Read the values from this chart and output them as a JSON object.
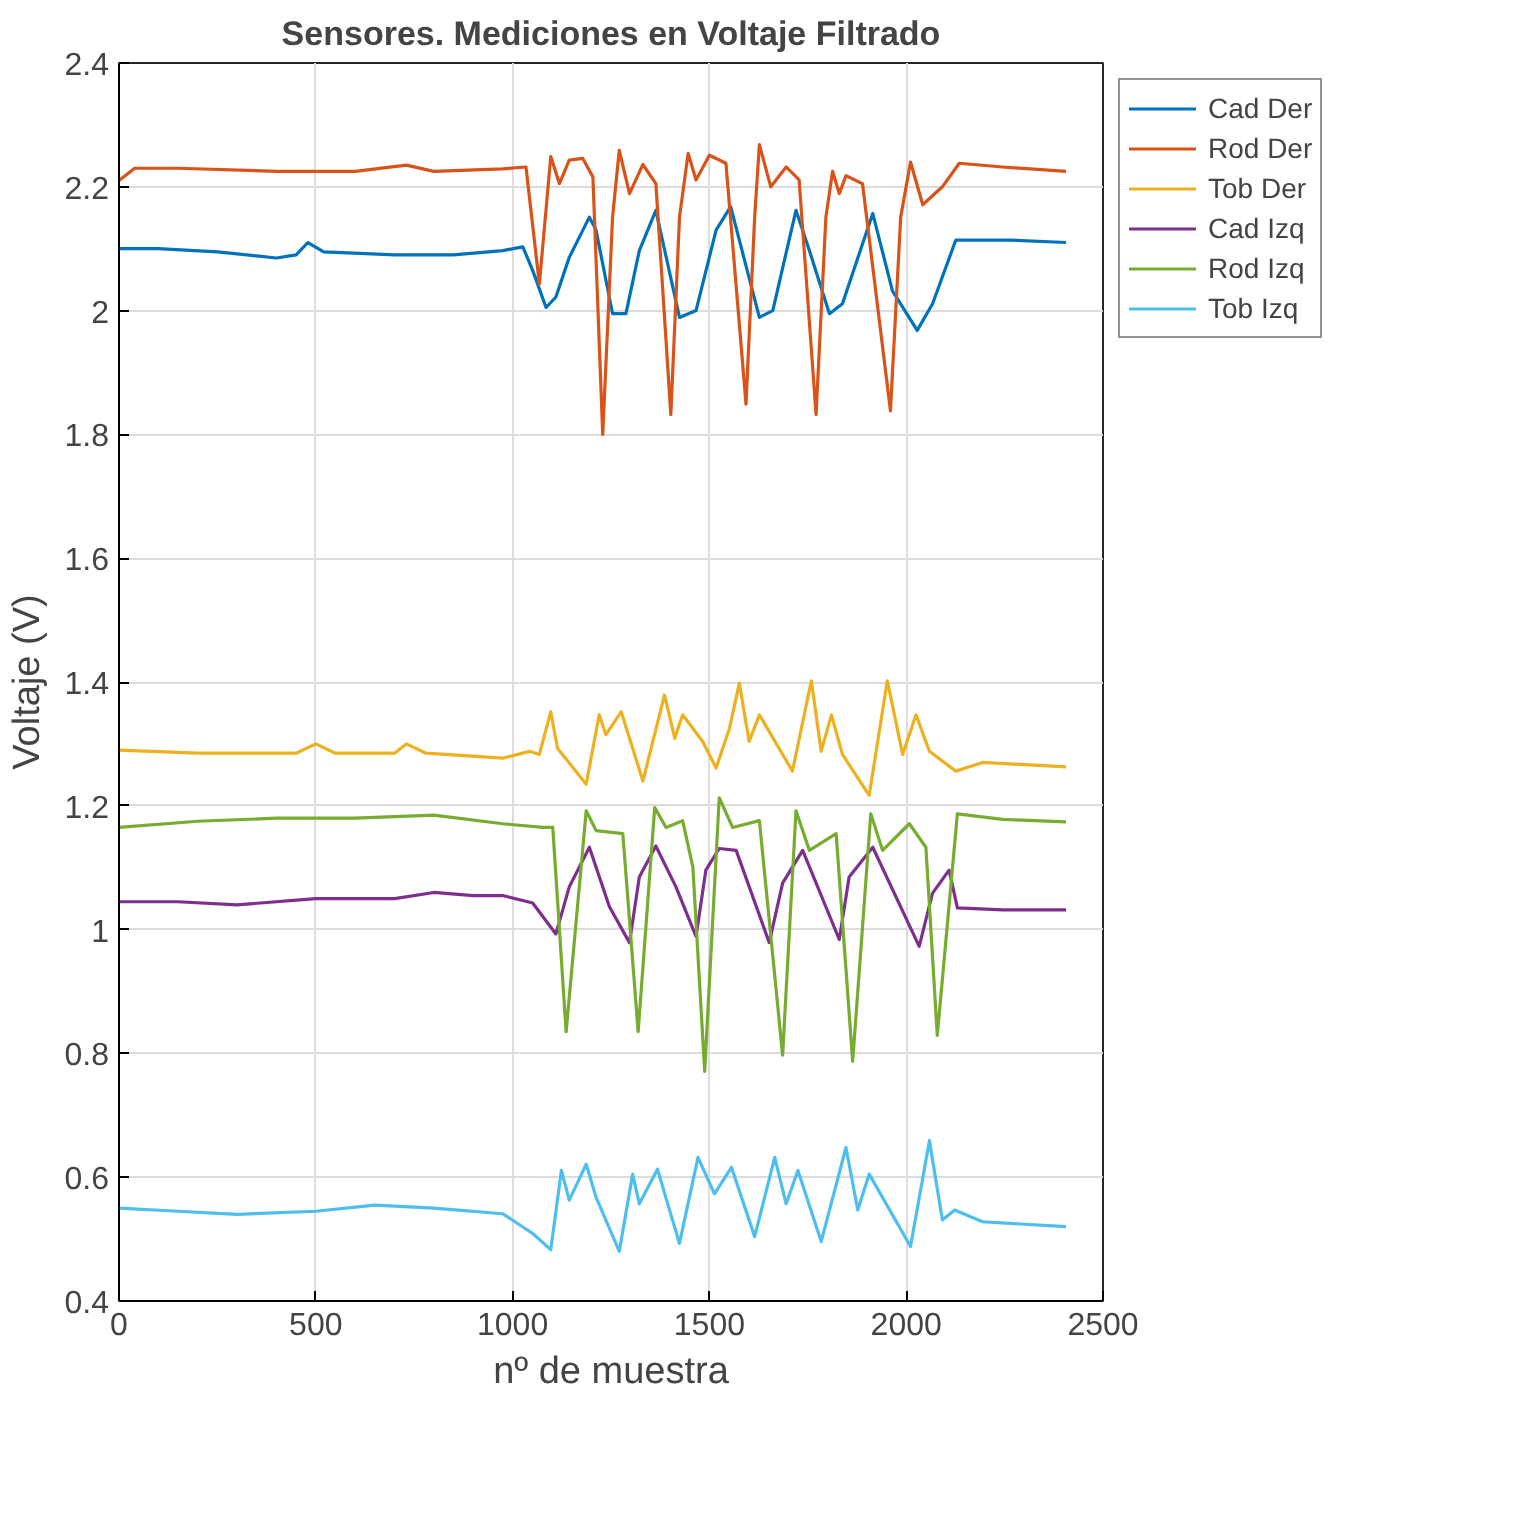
{
  "chart_data": {
    "type": "line",
    "title": "Sensores. Mediciones en Voltaje Filtrado",
    "xlabel": "nº de muestra",
    "ylabel": "Voltaje (V)",
    "xlim": [
      0,
      2500
    ],
    "xticks": [
      0,
      500,
      1000,
      1500,
      2000,
      2500
    ],
    "ylim": [
      0.4,
      2.4
    ],
    "yticks": [
      0.4,
      0.6,
      0.8,
      1,
      1.2,
      1.4,
      1.6,
      1.8,
      2,
      2.2,
      2.4
    ],
    "grid": true,
    "legend": "right",
    "line_style": "solid",
    "series": [
      {
        "name": "Cad Der",
        "color": "#0072bd",
        "x": [
          0,
          100,
          250,
          400,
          450,
          480,
          520,
          700,
          850,
          975,
          1026,
          1051,
          1085,
          1110,
          1144,
          1195,
          1212,
          1254,
          1288,
          1322,
          1364,
          1424,
          1466,
          1517,
          1554,
          1627,
          1661,
          1720,
          1754,
          1805,
          1838,
          1915,
          1965,
          2028,
          2067,
          2126,
          2262,
          2406
        ],
        "values": [
          2.1,
          2.1,
          2.095,
          2.085,
          2.09,
          2.11,
          2.095,
          2.09,
          2.09,
          2.097,
          2.103,
          2.065,
          2.005,
          2.022,
          2.086,
          2.151,
          2.13,
          1.995,
          1.995,
          2.097,
          2.162,
          1.989,
          2.0,
          2.13,
          2.168,
          1.989,
          2.0,
          2.162,
          2.097,
          1.995,
          2.011,
          2.157,
          2.032,
          1.968,
          2.011,
          2.114,
          2.114,
          2.11
        ]
      },
      {
        "name": "Rod Der",
        "color": "#d95319",
        "x": [
          0,
          40,
          150,
          400,
          600,
          730,
          800,
          975,
          1034,
          1068,
          1097,
          1119,
          1144,
          1178,
          1204,
          1229,
          1254,
          1271,
          1297,
          1331,
          1364,
          1402,
          1424,
          1446,
          1466,
          1500,
          1542,
          1593,
          1615,
          1627,
          1656,
          1695,
          1728,
          1771,
          1796,
          1813,
          1830,
          1847,
          1889,
          1960,
          1986,
          2011,
          2042,
          2092,
          2135,
          2245,
          2406
        ],
        "values": [
          2.21,
          2.23,
          2.23,
          2.225,
          2.225,
          2.235,
          2.225,
          2.229,
          2.232,
          2.043,
          2.249,
          2.205,
          2.243,
          2.246,
          2.216,
          1.8,
          2.151,
          2.259,
          2.189,
          2.236,
          2.205,
          1.832,
          2.151,
          2.254,
          2.211,
          2.251,
          2.238,
          1.849,
          2.151,
          2.268,
          2.2,
          2.232,
          2.211,
          1.832,
          2.151,
          2.225,
          2.189,
          2.218,
          2.205,
          1.838,
          2.151,
          2.24,
          2.171,
          2.2,
          2.238,
          2.232,
          2.225
        ]
      },
      {
        "name": "Tob Der",
        "color": "#edb120",
        "x": [
          0,
          200,
          450,
          500,
          550,
          700,
          730,
          780,
          975,
          1043,
          1068,
          1097,
          1114,
          1187,
          1220,
          1237,
          1276,
          1331,
          1386,
          1412,
          1432,
          1483,
          1517,
          1551,
          1576,
          1601,
          1627,
          1711,
          1759,
          1784,
          1810,
          1838,
          1906,
          1952,
          1991,
          2025,
          2059,
          2126,
          2194,
          2406
        ],
        "values": [
          1.29,
          1.285,
          1.285,
          1.3,
          1.285,
          1.285,
          1.3,
          1.285,
          1.277,
          1.288,
          1.283,
          1.352,
          1.293,
          1.235,
          1.347,
          1.315,
          1.352,
          1.24,
          1.379,
          1.309,
          1.347,
          1.304,
          1.261,
          1.325,
          1.398,
          1.304,
          1.347,
          1.256,
          1.402,
          1.288,
          1.347,
          1.283,
          1.217,
          1.402,
          1.283,
          1.347,
          1.288,
          1.256,
          1.27,
          1.263
        ]
      },
      {
        "name": "Cad Izq",
        "color": "#7e2f8e",
        "x": [
          0,
          150,
          300,
          500,
          700,
          800,
          900,
          975,
          1051,
          1110,
          1144,
          1195,
          1246,
          1297,
          1322,
          1364,
          1415,
          1466,
          1491,
          1525,
          1568,
          1652,
          1686,
          1737,
          1830,
          1855,
          1915,
          2033,
          2067,
          2109,
          2130,
          2245,
          2406
        ],
        "values": [
          1.045,
          1.045,
          1.04,
          1.05,
          1.05,
          1.06,
          1.055,
          1.055,
          1.043,
          0.993,
          1.069,
          1.133,
          1.037,
          0.979,
          1.085,
          1.135,
          1.069,
          0.989,
          1.096,
          1.131,
          1.128,
          0.979,
          1.075,
          1.128,
          0.984,
          1.085,
          1.133,
          0.973,
          1.059,
          1.096,
          1.035,
          1.032,
          1.032
        ]
      },
      {
        "name": "Rod Izq",
        "color": "#77ac30",
        "x": [
          0,
          200,
          400,
          600,
          800,
          975,
          1077,
          1102,
          1136,
          1187,
          1212,
          1280,
          1319,
          1361,
          1390,
          1432,
          1458,
          1488,
          1525,
          1559,
          1627,
          1686,
          1720,
          1754,
          1822,
          1864,
          1910,
          1940,
          2008,
          2050,
          2079,
          2130,
          2245,
          2406
        ],
        "values": [
          1.165,
          1.175,
          1.18,
          1.18,
          1.185,
          1.171,
          1.165,
          1.165,
          0.835,
          1.192,
          1.16,
          1.155,
          0.835,
          1.197,
          1.165,
          1.176,
          1.101,
          0.771,
          1.213,
          1.165,
          1.176,
          0.797,
          1.192,
          1.128,
          1.155,
          0.787,
          1.187,
          1.128,
          1.171,
          1.133,
          0.829,
          1.187,
          1.178,
          1.174
        ]
      },
      {
        "name": "Tob Izq",
        "color": "#4dbeee",
        "x": [
          0,
          150,
          300,
          500,
          650,
          800,
          975,
          1051,
          1097,
          1124,
          1144,
          1187,
          1212,
          1271,
          1305,
          1322,
          1368,
          1424,
          1471,
          1513,
          1556,
          1615,
          1666,
          1695,
          1725,
          1784,
          1847,
          1877,
          1906,
          2011,
          2059,
          2092,
          2123,
          2194,
          2406
        ],
        "values": [
          0.55,
          0.545,
          0.54,
          0.545,
          0.555,
          0.55,
          0.541,
          0.509,
          0.483,
          0.611,
          0.563,
          0.621,
          0.568,
          0.48,
          0.605,
          0.557,
          0.613,
          0.493,
          0.632,
          0.573,
          0.616,
          0.504,
          0.632,
          0.557,
          0.611,
          0.496,
          0.648,
          0.547,
          0.605,
          0.488,
          0.659,
          0.531,
          0.547,
          0.528,
          0.52
        ]
      }
    ]
  }
}
